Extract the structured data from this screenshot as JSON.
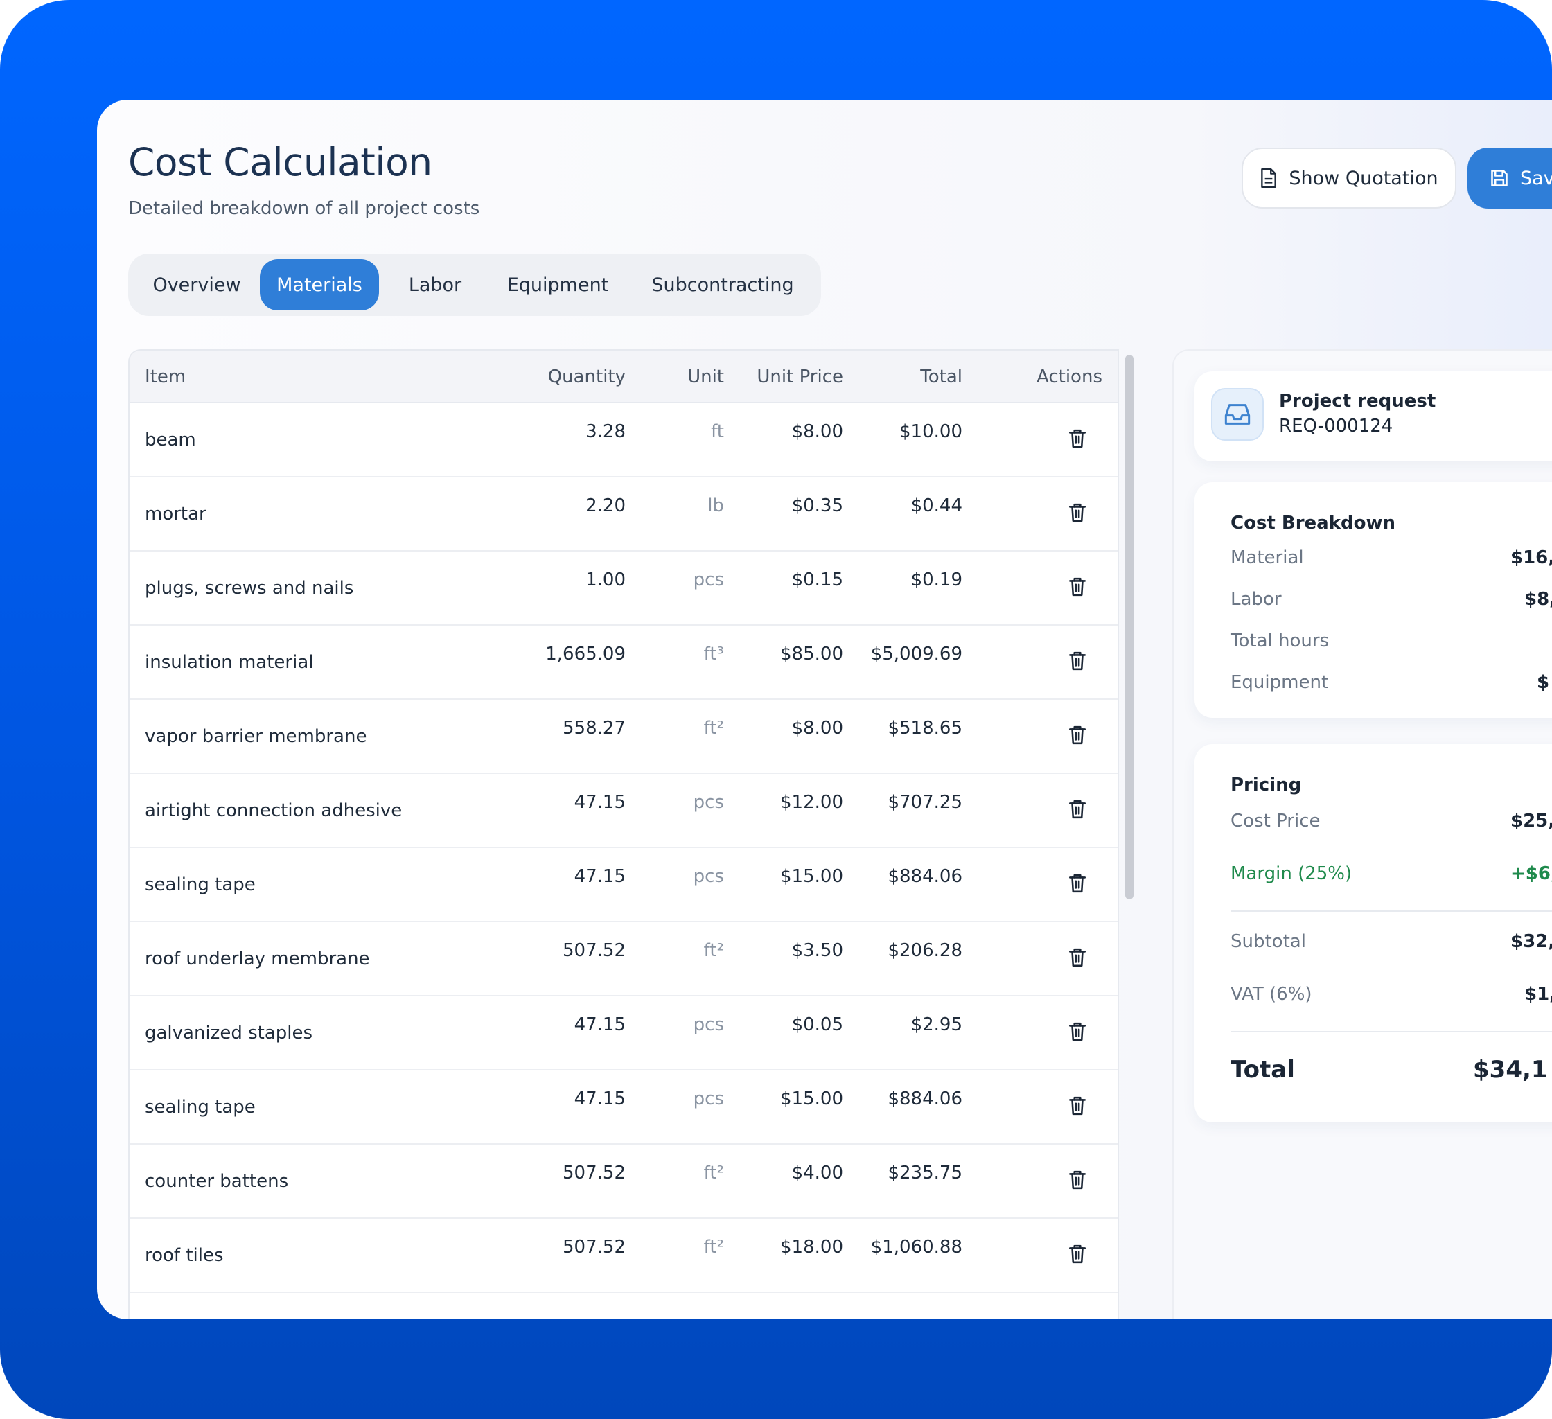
{
  "page": {
    "title": "Cost Calculation",
    "subtitle": "Detailed breakdown of all project costs"
  },
  "toolbar": {
    "show_quotation_label": "Show Quotation",
    "save_label": "Sav"
  },
  "tabs": [
    {
      "label": "Overview",
      "active": false
    },
    {
      "label": "Materials",
      "active": true
    },
    {
      "label": "Labor",
      "active": false
    },
    {
      "label": "Equipment",
      "active": false
    },
    {
      "label": "Subcontracting",
      "active": false
    }
  ],
  "table": {
    "columns": {
      "item": "Item",
      "quantity": "Quantity",
      "unit": "Unit",
      "unit_price": "Unit Price",
      "total": "Total",
      "actions": "Actions"
    },
    "rows": [
      {
        "item": "beam",
        "quantity": "3.28",
        "unit": "ft",
        "unit_price": "$8.00",
        "total": "$10.00"
      },
      {
        "item": "mortar",
        "quantity": "2.20",
        "unit": "lb",
        "unit_price": "$0.35",
        "total": "$0.44"
      },
      {
        "item": "plugs, screws and nails",
        "quantity": "1.00",
        "unit": "pcs",
        "unit_price": "$0.15",
        "total": "$0.19"
      },
      {
        "item": "insulation material",
        "quantity": "1,665.09",
        "unit": "ft³",
        "unit_price": "$85.00",
        "total": "$5,009.69"
      },
      {
        "item": "vapor barrier membrane",
        "quantity": "558.27",
        "unit": "ft²",
        "unit_price": "$8.00",
        "total": "$518.65"
      },
      {
        "item": "airtight connection adhesive",
        "quantity": "47.15",
        "unit": "pcs",
        "unit_price": "$12.00",
        "total": "$707.25"
      },
      {
        "item": "sealing tape",
        "quantity": "47.15",
        "unit": "pcs",
        "unit_price": "$15.00",
        "total": "$884.06"
      },
      {
        "item": "roof underlay membrane",
        "quantity": "507.52",
        "unit": "ft²",
        "unit_price": "$3.50",
        "total": "$206.28"
      },
      {
        "item": "galvanized staples",
        "quantity": "47.15",
        "unit": "pcs",
        "unit_price": "$0.05",
        "total": "$2.95"
      },
      {
        "item": "sealing tape",
        "quantity": "47.15",
        "unit": "pcs",
        "unit_price": "$15.00",
        "total": "$884.06"
      },
      {
        "item": "counter battens",
        "quantity": "507.52",
        "unit": "ft²",
        "unit_price": "$4.00",
        "total": "$235.75"
      },
      {
        "item": "roof tiles",
        "quantity": "507.52",
        "unit": "ft²",
        "unit_price": "$18.00",
        "total": "$1,060.88"
      }
    ]
  },
  "project_request": {
    "label": "Project request",
    "id": "REQ-000124"
  },
  "cost_breakdown": {
    "title": "Cost Breakdown",
    "material_label": "Material",
    "material_value": "$16,",
    "labor_label": "Labor",
    "labor_value": "$8,",
    "total_hours_label": "Total hours",
    "equipment_label": "Equipment",
    "equipment_value": "$"
  },
  "pricing": {
    "title": "Pricing",
    "cost_price_label": "Cost Price",
    "cost_price_value": "$25,",
    "margin_label": "Margin (25%)",
    "margin_value": "+$6,",
    "subtotal_label": "Subtotal",
    "subtotal_value": "$32,",
    "vat_label": "VAT (6%)",
    "vat_value": "$1,",
    "total_label": "Total",
    "total_value": "$34,1"
  },
  "colors": {
    "accent": "#2f7ed8",
    "background": "#0066ff",
    "margin_green": "#1f8a4c"
  },
  "icons": {
    "show_quotation": "document-icon",
    "save": "floppy-disk-icon",
    "row_action": "trash-icon",
    "project_request": "inbox-icon"
  }
}
